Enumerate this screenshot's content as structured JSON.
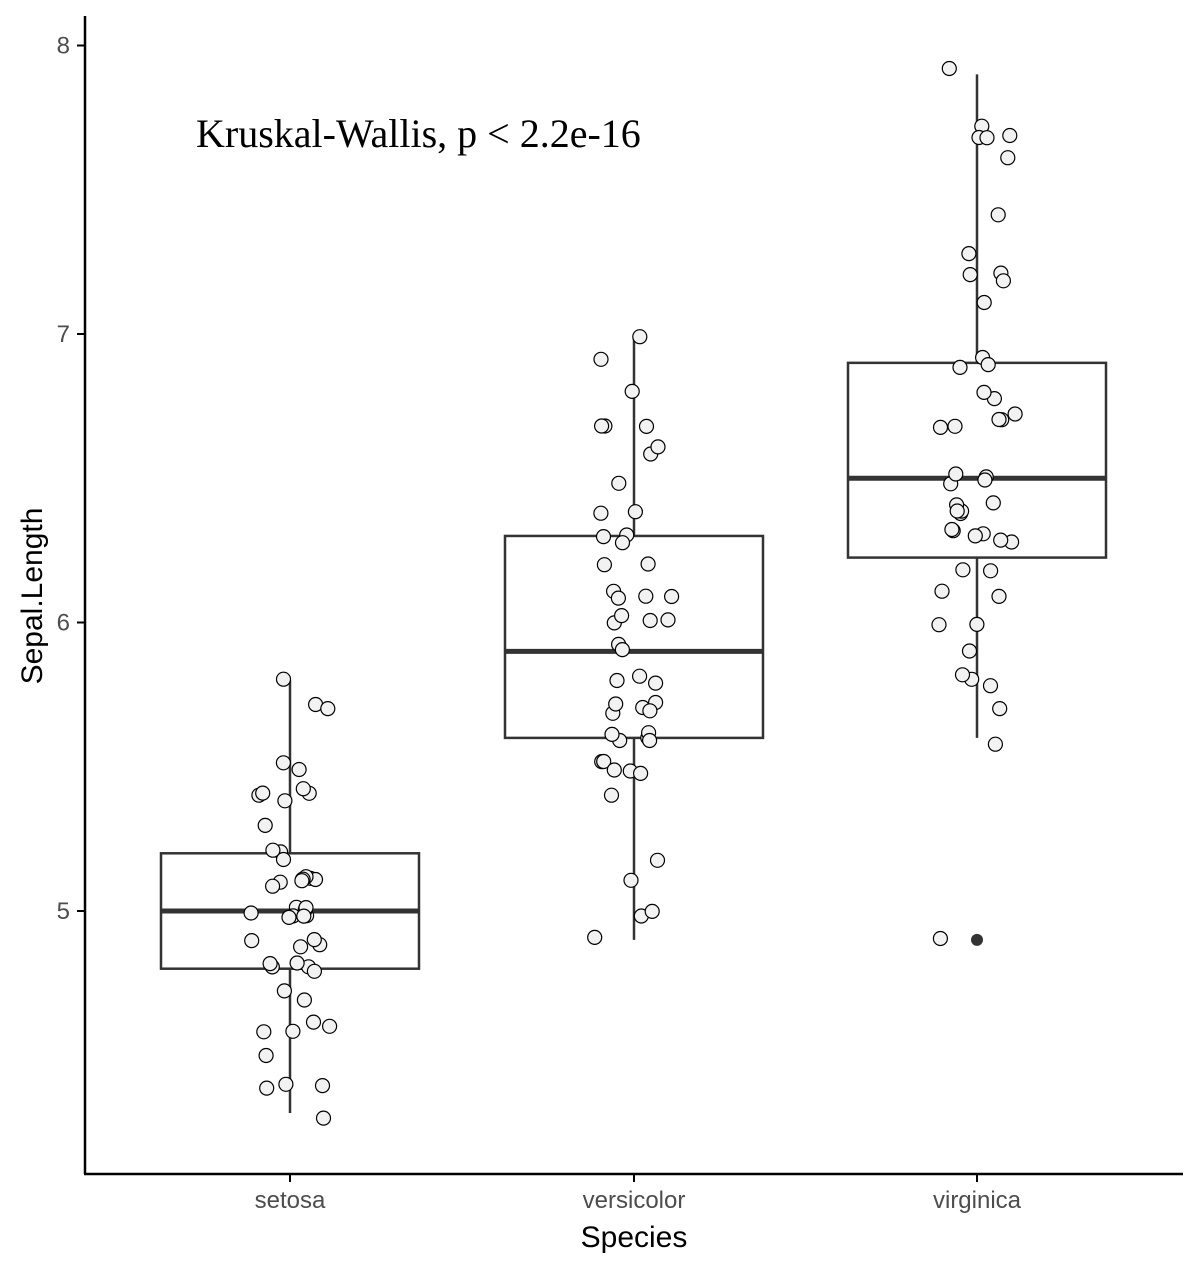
{
  "chart_data": {
    "type": "box",
    "xlabel": "Species",
    "ylabel": "Sepal.Length",
    "annotation": "Kruskal-Wallis, p < 2.2e-16",
    "categories": [
      "setosa",
      "versicolor",
      "virginica"
    ],
    "ylim": [
      4.2,
      8.1
    ],
    "yticks": [
      5,
      6,
      7,
      8
    ],
    "grid": false,
    "legend": "none",
    "colors": {
      "box_line": "#333333",
      "point_fill": "#f2f2f2",
      "point_stroke": "#000000",
      "outlier": "#333333",
      "axis": "#000000",
      "tick_label": "#4d4d4d"
    },
    "boxes": [
      {
        "category": "setosa",
        "min": 4.3,
        "q1": 4.8,
        "median": 5.0,
        "q3": 5.2,
        "max": 5.8,
        "outliers": []
      },
      {
        "category": "versicolor",
        "min": 4.9,
        "q1": 5.6,
        "median": 5.9,
        "q3": 6.3,
        "max": 7.0,
        "outliers": []
      },
      {
        "category": "virginica",
        "min": 5.6,
        "q1": 6.225,
        "median": 6.5,
        "q3": 6.9,
        "max": 7.9,
        "outliers": [
          4.9
        ]
      }
    ],
    "points": [
      {
        "category": "setosa",
        "values": [
          5.1,
          4.9,
          4.7,
          4.6,
          5.0,
          5.4,
          4.6,
          5.0,
          4.4,
          4.9,
          5.4,
          4.8,
          4.8,
          4.3,
          5.8,
          5.7,
          5.4,
          5.1,
          5.7,
          5.1,
          5.4,
          5.1,
          4.6,
          5.1,
          4.8,
          5.0,
          5.0,
          5.2,
          5.2,
          4.7,
          4.8,
          5.4,
          5.2,
          5.5,
          4.9,
          5.0,
          5.5,
          4.9,
          4.4,
          5.1,
          5.0,
          4.5,
          4.4,
          5.0,
          5.1,
          4.8,
          5.1,
          4.6,
          5.3,
          5.0
        ]
      },
      {
        "category": "versicolor",
        "values": [
          7.0,
          6.4,
          6.9,
          5.5,
          6.5,
          5.7,
          6.3,
          4.9,
          6.6,
          5.2,
          5.0,
          5.9,
          6.0,
          6.1,
          5.6,
          6.7,
          5.6,
          5.8,
          6.2,
          5.6,
          5.9,
          6.1,
          6.3,
          6.1,
          6.4,
          6.6,
          6.8,
          6.7,
          6.0,
          5.7,
          5.5,
          5.5,
          5.8,
          6.0,
          5.4,
          6.0,
          6.7,
          6.3,
          5.6,
          5.5,
          5.5,
          6.1,
          5.8,
          5.0,
          5.6,
          5.7,
          5.7,
          6.2,
          5.1,
          5.7
        ]
      },
      {
        "category": "virginica",
        "values": [
          6.3,
          5.8,
          7.1,
          6.3,
          6.5,
          7.6,
          4.9,
          7.3,
          6.7,
          7.2,
          6.5,
          6.4,
          6.8,
          5.7,
          5.8,
          6.4,
          6.5,
          7.7,
          7.7,
          6.0,
          6.9,
          5.6,
          7.7,
          6.3,
          6.7,
          7.2,
          6.2,
          6.1,
          6.4,
          7.2,
          7.4,
          7.9,
          6.4,
          6.3,
          6.1,
          7.7,
          6.3,
          6.4,
          6.0,
          6.9,
          6.7,
          6.9,
          5.8,
          6.8,
          6.7,
          6.7,
          6.3,
          6.5,
          6.2,
          5.9
        ]
      }
    ]
  }
}
